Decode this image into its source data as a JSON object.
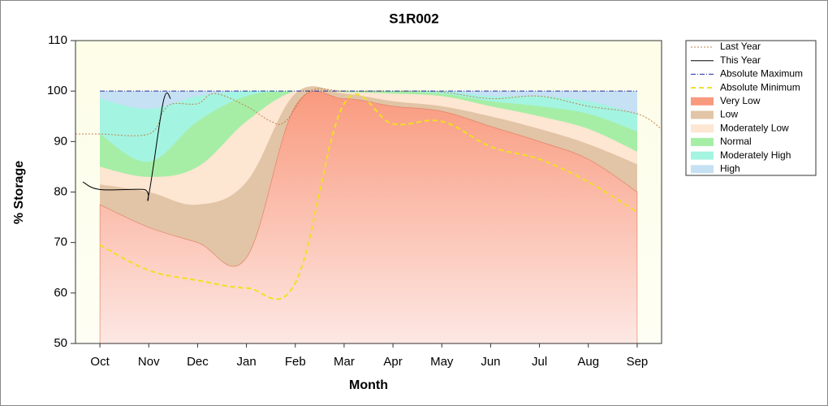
{
  "chart_data": {
    "type": "area",
    "title": "S1R002",
    "xlabel": "Month",
    "ylabel": "% Storage",
    "xlim": [
      -0.5,
      11.5
    ],
    "xticks": [
      {
        "value": 0,
        "label": "Oct"
      },
      {
        "value": 1,
        "label": "Nov"
      },
      {
        "value": 2,
        "label": "Dec"
      },
      {
        "value": 3,
        "label": "Jan"
      },
      {
        "value": 4,
        "label": "Feb"
      },
      {
        "value": 5,
        "label": "Mar"
      },
      {
        "value": 6,
        "label": "Apr"
      },
      {
        "value": 7,
        "label": "May"
      },
      {
        "value": 8,
        "label": "Jun"
      },
      {
        "value": 9,
        "label": "Jul"
      },
      {
        "value": 10,
        "label": "Aug"
      },
      {
        "value": 11,
        "label": "Sep"
      }
    ],
    "ylim": [
      50,
      110
    ],
    "yticks": [
      50,
      60,
      70,
      80,
      90,
      100,
      110
    ],
    "x": [
      0,
      1,
      2,
      3,
      4,
      5,
      6,
      7,
      8,
      9,
      10,
      11
    ],
    "legend": "outside-right",
    "series": [
      {
        "name": "Last Year",
        "kind": "line",
        "color": "#c0804a",
        "dash": "dotted",
        "x": [
          -0.5,
          0,
          1,
          1.3,
          1.5,
          2,
          2.35,
          3,
          3.5,
          3.8,
          4.3,
          5,
          6,
          7,
          8,
          9,
          10,
          11,
          11.5
        ],
        "values": [
          91.5,
          91.5,
          91.5,
          96,
          97.5,
          97.5,
          99.5,
          97,
          94,
          94,
          100,
          100,
          100,
          99.8,
          98.5,
          99,
          97,
          95.5,
          92.5
        ]
      },
      {
        "name": "This Year",
        "kind": "line",
        "color": "#000000",
        "dash": "solid",
        "x": [
          -0.35,
          0,
          0.9,
          1,
          1.3,
          1.45
        ],
        "values": [
          82,
          80.5,
          80.5,
          79.5,
          98,
          98.5
        ]
      },
      {
        "name": "Absolute Maximum",
        "kind": "line",
        "color": "#1f2fa0",
        "dash": "dashdot",
        "values": [
          100,
          100,
          100,
          100,
          100,
          100,
          100,
          100,
          100,
          100,
          100,
          100
        ]
      },
      {
        "name": "Absolute Minimum",
        "kind": "line",
        "color": "#f0e020",
        "dash": "dashed",
        "values": [
          69.5,
          64.5,
          62.5,
          61,
          62,
          97.5,
          93.5,
          94,
          89,
          86.5,
          82,
          76
        ]
      },
      {
        "name": "Very Low",
        "kind": "band",
        "color": "#f99a7e",
        "values": [
          77.5,
          73,
          70,
          67,
          97,
          98.5,
          97,
          96,
          93,
          90,
          86.5,
          80
        ]
      },
      {
        "name": "Low",
        "kind": "band",
        "color": "#e2c4a6",
        "values": [
          81.5,
          80,
          77.5,
          82,
          99.5,
          99.5,
          98,
          97,
          95,
          92.5,
          89.5,
          85.5
        ]
      },
      {
        "name": "Moderately Low",
        "kind": "band",
        "color": "#fde6d2",
        "values": [
          85,
          83,
          85,
          94,
          100,
          99.8,
          99.5,
          99,
          97,
          95,
          92.5,
          88
        ]
      },
      {
        "name": "Normal",
        "kind": "band",
        "color": "#a6eea6",
        "values": [
          91.5,
          86,
          94,
          99,
          100,
          100,
          100,
          99.5,
          98,
          97,
          95.5,
          92
        ]
      },
      {
        "name": "Moderately High",
        "kind": "band",
        "color": "#a4f4e2",
        "values": [
          98.5,
          96.5,
          99,
          100,
          100,
          100,
          100,
          100,
          99,
          99,
          98,
          95.5
        ]
      },
      {
        "name": "High",
        "kind": "band",
        "color": "#c6e0f4",
        "values": [
          100,
          100,
          100,
          100,
          100,
          100,
          100,
          100,
          100,
          100,
          100,
          100
        ]
      }
    ]
  }
}
